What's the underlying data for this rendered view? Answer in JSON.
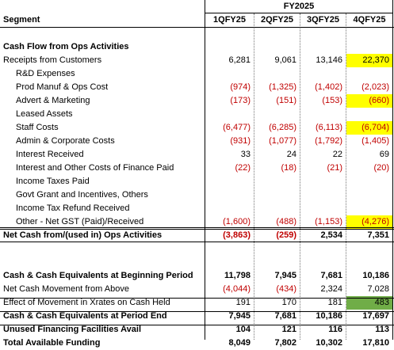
{
  "header": {
    "fy": "FY2025",
    "segment": "Segment",
    "quarters": [
      "1QFY25",
      "2QFY25",
      "3QFY25",
      "4QFY25"
    ]
  },
  "rows": [
    {
      "label": "Cash Flow from Ops Activities",
      "bold": true,
      "values": [
        "",
        "",
        "",
        ""
      ]
    },
    {
      "label": "Receipts from Customers",
      "values": [
        "6,281",
        "9,061",
        "13,146",
        "22,370"
      ],
      "highlight": [
        false,
        false,
        false,
        "yellow"
      ]
    },
    {
      "label": "R&D Expenses",
      "indent": true,
      "values": [
        "",
        "",
        "",
        ""
      ]
    },
    {
      "label": "Prod Manuf & Ops Cost",
      "indent": true,
      "values": [
        "(974)",
        "(1,325)",
        "(1,402)",
        "(2,023)"
      ]
    },
    {
      "label": "Advert & Marketing",
      "indent": true,
      "values": [
        "(173)",
        "(151)",
        "(153)",
        "(660)"
      ],
      "highlight": [
        false,
        false,
        false,
        "yellow"
      ]
    },
    {
      "label": "Leased Assets",
      "indent": true,
      "values": [
        "",
        "",
        "",
        ""
      ]
    },
    {
      "label": "Staff Costs",
      "indent": true,
      "values": [
        "(6,477)",
        "(6,285)",
        "(6,113)",
        "(6,704)"
      ],
      "highlight": [
        false,
        false,
        false,
        "yellow"
      ]
    },
    {
      "label": "Admin & Corporate Costs",
      "indent": true,
      "values": [
        "(931)",
        "(1,077)",
        "(1,792)",
        "(1,405)"
      ]
    },
    {
      "label": "Interest Received",
      "indent": true,
      "values": [
        "33",
        "24",
        "22",
        "69"
      ]
    },
    {
      "label": "Interest and Other Costs of Finance Paid",
      "indent": true,
      "values": [
        "(22)",
        "(18)",
        "(21)",
        "(20)"
      ]
    },
    {
      "label": "Income Taxes Paid",
      "indent": true,
      "values": [
        "",
        "",
        "",
        ""
      ]
    },
    {
      "label": "Govt Grant and Incentives, Others",
      "indent": true,
      "values": [
        "",
        "",
        "",
        ""
      ]
    },
    {
      "label": "Income Tax Refund Received",
      "indent": true,
      "values": [
        "",
        "",
        "",
        ""
      ]
    },
    {
      "label": "Other - Net GST (Paid)/Received",
      "indent": true,
      "values": [
        "(1,600)",
        "(488)",
        "(1,153)",
        "(4,276)"
      ],
      "highlight": [
        false,
        false,
        false,
        "yellow"
      ]
    },
    {
      "label": "Net Cash from/(used in) Ops Activities",
      "bold": true,
      "values": [
        "(3,863)",
        "(259)",
        "2,534",
        "7,351"
      ]
    },
    {
      "label": "",
      "values": [
        "",
        "",
        "",
        ""
      ]
    },
    {
      "label": "",
      "values": [
        "",
        "",
        "",
        ""
      ]
    },
    {
      "label": "Cash & Cash Equivalents at Beginning Period",
      "bold": true,
      "values": [
        "11,798",
        "7,945",
        "7,681",
        "10,186"
      ]
    },
    {
      "label": "Net Cash Movement from Above",
      "values": [
        "(4,044)",
        "(434)",
        "2,324",
        "7,028"
      ]
    },
    {
      "label": "Effect of Movement in Xrates on Cash Held",
      "values": [
        "191",
        "170",
        "181",
        "483"
      ],
      "highlight": [
        false,
        false,
        false,
        "green"
      ]
    },
    {
      "label": "Cash & Cash Equivalents at Period End",
      "bold": true,
      "values": [
        "7,945",
        "7,681",
        "10,186",
        "17,697"
      ]
    },
    {
      "label": "Unused Financing Facilities Avail",
      "bold": true,
      "values": [
        "104",
        "121",
        "116",
        "113"
      ]
    },
    {
      "label": "Total Available Funding",
      "bold": true,
      "values": [
        "8,049",
        "7,802",
        "10,302",
        "17,810"
      ]
    }
  ],
  "colors": {
    "negative": "#c00000",
    "highlight_yellow": "#ffff00",
    "highlight_green": "#70ad47"
  }
}
